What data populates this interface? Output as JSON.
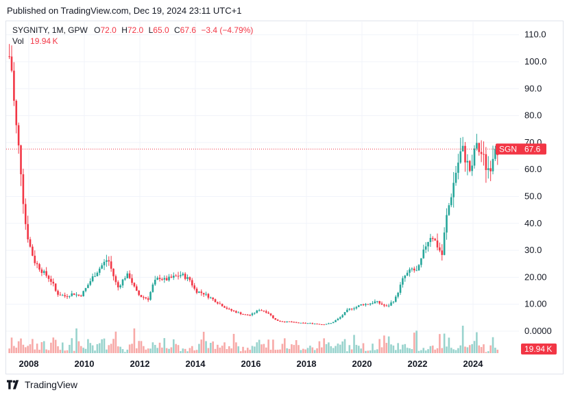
{
  "header": {
    "published": "Published on TradingView.com, Dec 19, 2024 23:11 UTC+1"
  },
  "legend": {
    "symbol": "SYGNITY, 1M, GPW",
    "o_label": "O",
    "o_value": "72.0",
    "h_label": "H",
    "h_value": "72.0",
    "l_label": "L",
    "l_value": "65.0",
    "c_label": "C",
    "c_value": "67.6",
    "change": "−3.4 (−4.79%)",
    "vol_label": "Vol",
    "vol_value": "19.94 K"
  },
  "price_tag": {
    "symbol": "SGN",
    "value": "67.6"
  },
  "volume_tag": "19.94 K",
  "footer": {
    "brand": "TradingView",
    "logo_icon": "tradingview-logo-icon"
  },
  "colors": {
    "up": "#26a69a",
    "down": "#f23645",
    "up_vol": "#98d3cd",
    "down_vol": "#f7a9a7",
    "grid": "#f0f3fa"
  },
  "chart_data": {
    "type": "candlestick",
    "y_axis_ticks": [
      "110.0",
      "100.0",
      "90.0",
      "80.0",
      "70.0",
      "60.0",
      "50.0",
      "40.0",
      "30.0",
      "20.00",
      "10.00",
      "0.0000"
    ],
    "ylim": [
      0,
      110
    ],
    "x_axis_ticks": [
      "2008",
      "2010",
      "2012",
      "2014",
      "2016",
      "2018",
      "2020",
      "2022",
      "2024"
    ],
    "last_price": 67.6,
    "close_series": {
      "t": [
        2007.35,
        2007.5,
        2007.7,
        2007.85,
        2008.0,
        2008.2,
        2008.35,
        2008.5,
        2008.7,
        2008.85,
        2009.0,
        2009.3,
        2009.6,
        2009.85,
        2010.0,
        2010.3,
        2010.6,
        2010.85,
        2011.0,
        2011.2,
        2011.45,
        2011.6,
        2011.85,
        2012.0,
        2012.3,
        2012.5,
        2012.7,
        2012.9,
        2013.2,
        2013.5,
        2013.8,
        2014.0,
        2014.3,
        2014.6,
        2014.9,
        2015.2,
        2015.5,
        2015.8,
        2016.0,
        2016.3,
        2016.6,
        2016.9,
        2017.2,
        2017.4,
        2017.6,
        2017.8,
        2018.0,
        2018.3,
        2018.6,
        2018.9,
        2019.2,
        2019.5,
        2019.8,
        2020.0,
        2020.2,
        2020.5,
        2020.7,
        2020.9,
        2021.2,
        2021.5,
        2021.8,
        2022.0,
        2022.3,
        2022.5,
        2022.7,
        2022.9,
        2023.0,
        2023.2,
        2023.4,
        2023.6,
        2023.8,
        2023.95,
        2024.05,
        2024.2,
        2024.35,
        2024.5,
        2024.65,
        2024.8,
        2024.9
      ],
      "close": [
        102,
        80,
        62,
        42,
        33,
        26,
        24,
        22,
        20,
        18,
        14,
        13,
        14,
        13,
        15,
        20,
        24,
        27,
        22,
        16,
        20,
        21,
        15,
        13,
        12,
        18,
        20,
        19,
        20,
        21,
        19,
        15,
        14,
        12,
        10,
        8,
        7,
        6,
        6,
        8,
        7,
        4,
        3.5,
        3.5,
        3.2,
        3.0,
        3.0,
        2.8,
        2.5,
        3.0,
        5,
        8,
        9,
        10,
        10,
        11,
        10,
        9,
        12,
        20,
        23,
        22,
        32,
        36,
        32,
        28,
        40,
        50,
        60,
        68,
        62,
        58,
        68,
        67.6,
        65,
        60,
        62,
        70,
        67.6
      ]
    },
    "volume_peaks_k": [
      5,
      8,
      4,
      6,
      9,
      7,
      10,
      6,
      8,
      5,
      7,
      4,
      6,
      5,
      7,
      9,
      3,
      4,
      5,
      10,
      12,
      4,
      3,
      5,
      2,
      3
    ],
    "volume_last": "19.94K"
  }
}
